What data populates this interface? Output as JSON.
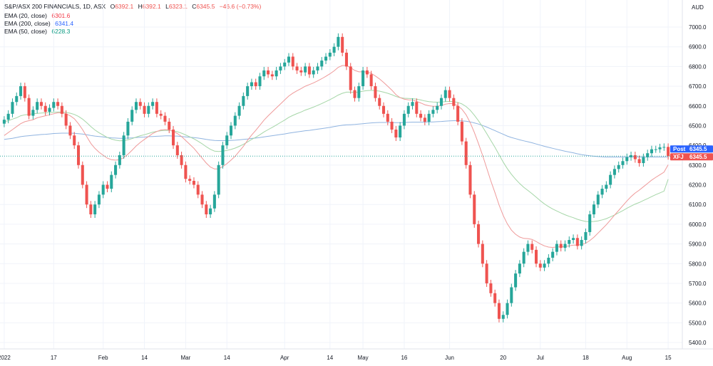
{
  "header": {
    "symbol_line": "S&P/ASX 200 FINANCIALS, 1D, ASX",
    "ohlc": {
      "open_label": "O",
      "open": "6392.1",
      "high_label": "H",
      "high": "6392.1",
      "low_label": "L",
      "low": "6323.1",
      "close_label": "C",
      "close": "6345.5",
      "change": "−46.6 (−0.73%)"
    },
    "indicators": [
      {
        "label": "EMA (20, close)",
        "value": "6301.6",
        "color": "#f23645"
      },
      {
        "label": "EMA (200, close)",
        "value": "6341.4",
        "color": "#2962ff"
      },
      {
        "label": "EMA (50, close)",
        "value": "6228.3",
        "color": "#089981"
      }
    ]
  },
  "colors": {
    "up": "#26a69a",
    "down": "#ef5350",
    "ema20": "#ef9a9a",
    "ema50": "#a5d6a7",
    "ema200": "#90b4e0",
    "last_line": "#26a69a",
    "badge_post": "#2962ff",
    "badge_last": "#ef5350"
  },
  "badges": [
    {
      "label": "Post",
      "value": "6345.5",
      "color": "#2962ff"
    },
    {
      "label": "XFJ",
      "value": "6345.5",
      "color": "#ef5350"
    }
  ],
  "chart_data": {
    "type": "candlestick",
    "currency_label": "AUD",
    "ylim": [
      5400,
      7000
    ],
    "yticks": [
      5400,
      5500,
      5600,
      5700,
      5800,
      5900,
      6000,
      6100,
      6200,
      6300,
      6400,
      6500,
      6600,
      6700,
      6800,
      6900,
      7000
    ],
    "x_labels": [
      {
        "i": 0,
        "label": "2022"
      },
      {
        "i": 12,
        "label": "17"
      },
      {
        "i": 24,
        "label": "Feb"
      },
      {
        "i": 34,
        "label": "14"
      },
      {
        "i": 44,
        "label": "Mar"
      },
      {
        "i": 54,
        "label": "14"
      },
      {
        "i": 68,
        "label": "Apr"
      },
      {
        "i": 79,
        "label": "14"
      },
      {
        "i": 87,
        "label": "May"
      },
      {
        "i": 97,
        "label": "16"
      },
      {
        "i": 108,
        "label": "Jun"
      },
      {
        "i": 121,
        "label": "20"
      },
      {
        "i": 130,
        "label": "Jul"
      },
      {
        "i": 141,
        "label": "18"
      },
      {
        "i": 151,
        "label": "Aug"
      },
      {
        "i": 161,
        "label": "15"
      }
    ],
    "closes": [
      6530,
      6560,
      6620,
      6650,
      6700,
      6640,
      6550,
      6580,
      6620,
      6600,
      6570,
      6590,
      6620,
      6600,
      6560,
      6500,
      6450,
      6400,
      6300,
      6200,
      6100,
      6050,
      6100,
      6150,
      6200,
      6180,
      6250,
      6300,
      6350,
      6450,
      6520,
      6580,
      6620,
      6600,
      6560,
      6600,
      6620,
      6560,
      6550,
      6520,
      6480,
      6400,
      6350,
      6300,
      6230,
      6220,
      6200,
      6150,
      6100,
      6050,
      6080,
      6150,
      6300,
      6400,
      6450,
      6500,
      6550,
      6600,
      6650,
      6700,
      6720,
      6700,
      6750,
      6780,
      6760,
      6750,
      6780,
      6800,
      6820,
      6850,
      6800,
      6780,
      6770,
      6800,
      6760,
      6780,
      6800,
      6830,
      6850,
      6870,
      6900,
      6950,
      6870,
      6800,
      6680,
      6640,
      6700,
      6780,
      6760,
      6700,
      6640,
      6600,
      6560,
      6520,
      6480,
      6440,
      6500,
      6560,
      6600,
      6620,
      6560,
      6540,
      6520,
      6560,
      6580,
      6600,
      6640,
      6680,
      6640,
      6600,
      6520,
      6420,
      6300,
      6150,
      6000,
      5900,
      5800,
      5700,
      5650,
      5600,
      5520,
      5540,
      5600,
      5680,
      5750,
      5800,
      5860,
      5900,
      5870,
      5800,
      5780,
      5800,
      5830,
      5860,
      5900,
      5880,
      5900,
      5920,
      5930,
      5890,
      5920,
      5960,
      6050,
      6100,
      6150,
      6180,
      6200,
      6250,
      6280,
      6300,
      6320,
      6340,
      6350,
      6330,
      6310,
      6340,
      6360,
      6380,
      6380,
      6390,
      6392,
      6345.5
    ],
    "ema20": [
      6450,
      6465,
      6480,
      6495,
      6510,
      6520,
      6525,
      6530,
      6540,
      6545,
      6550,
      6555,
      6560,
      6565,
      6565,
      6560,
      6550,
      6535,
      6510,
      6480,
      6445,
      6410,
      6385,
      6365,
      6350,
      6335,
      6327,
      6325,
      6327,
      6338,
      6355,
      6375,
      6397,
      6415,
      6430,
      6445,
      6460,
      6470,
      6478,
      6480,
      6478,
      6470,
      6460,
      6445,
      6425,
      6405,
      6385,
      6360,
      6335,
      6310,
      6290,
      6280,
      6281,
      6292,
      6307,
      6325,
      6345,
      6370,
      6395,
      6425,
      6452,
      6476,
      6502,
      6528,
      6550,
      6570,
      6590,
      6610,
      6630,
      6650,
      6665,
      6677,
      6688,
      6700,
      6708,
      6717,
      6727,
      6738,
      6750,
      6763,
      6778,
      6796,
      6805,
      6805,
      6794,
      6780,
      6773,
      6773,
      6772,
      6765,
      6752,
      6737,
      6719,
      6700,
      6680,
      6657,
      6642,
      6634,
      6631,
      6630,
      6623,
      6615,
      6606,
      6601,
      6598,
      6598,
      6602,
      6609,
      6612,
      6611,
      6601,
      6583,
      6555,
      6515,
      6465,
      6410,
      6350,
      6285,
      6220,
      6160,
      6097,
      6044,
      6002,
      5970,
      5949,
      5935,
      5928,
      5927,
      5923,
      5912,
      5900,
      5890,
      5884,
      5882,
      5885,
      5885,
      5887,
      5890,
      5894,
      5894,
      5897,
      5903,
      5917,
      5934,
      5955,
      5976,
      5997,
      6021,
      6046,
      6070,
      6094,
      6118,
      6140,
      6158,
      6173,
      6190,
      6207,
      6224,
      6238,
      6251,
      6264,
      6301.6
    ],
    "ema50": [
      6520,
      6525,
      6533,
      6540,
      6550,
      6555,
      6557,
      6560,
      6562,
      6564,
      6565,
      6566,
      6568,
      6569,
      6569,
      6567,
      6563,
      6557,
      6547,
      6533,
      6515,
      6495,
      6478,
      6464,
      6452,
      6440,
      6432,
      6426,
      6423,
      6424,
      6428,
      6434,
      6442,
      6449,
      6454,
      6460,
      6467,
      6471,
      6474,
      6476,
      6476,
      6473,
      6469,
      6462,
      6453,
      6443,
      6433,
      6421,
      6408,
      6393,
      6380,
      6371,
      6369,
      6370,
      6374,
      6379,
      6386,
      6395,
      6405,
      6417,
      6430,
      6441,
      6454,
      6468,
      6480,
      6491,
      6503,
      6516,
      6528,
      6542,
      6552,
      6561,
      6569,
      6579,
      6586,
      6594,
      6603,
      6612,
      6622,
      6632,
      6643,
      6655,
      6664,
      6670,
      6670,
      6669,
      6670,
      6675,
      6678,
      6679,
      6678,
      6675,
      6670,
      6664,
      6657,
      6648,
      6642,
      6639,
      6638,
      6637,
      6634,
      6630,
      6625,
      6622,
      6620,
      6619,
      6620,
      6622,
      6623,
      6622,
      6618,
      6610,
      6597,
      6578,
      6553,
      6525,
      6494,
      6460,
      6425,
      6390,
      6352,
      6315,
      6282,
      6253,
      6228,
      6206,
      6187,
      6171,
      6155,
      6137,
      6119,
      6103,
      6089,
      6077,
      6067,
      6057,
      6048,
      6040,
      6033,
      6025,
      6019,
      6014,
      6013,
      6014,
      6017,
      6022,
      6028,
      6037,
      6047,
      6058,
      6069,
      6081,
      6092,
      6102,
      6110,
      6120,
      6130,
      6140,
      6150,
      6159,
      6168,
      6228.3
    ],
    "ema200": [
      6430,
      6433,
      6436,
      6440,
      6444,
      6447,
      6449,
      6451,
      6453,
      6455,
      6456,
      6458,
      6460,
      6461,
      6462,
      6462,
      6462,
      6461,
      6459,
      6457,
      6454,
      6450,
      6447,
      6445,
      6443,
      6440,
      6438,
      6437,
      6436,
      6436,
      6437,
      6438,
      6440,
      6441,
      6442,
      6444,
      6445,
      6446,
      6447,
      6448,
      6448,
      6447,
      6447,
      6445,
      6443,
      6441,
      6439,
      6437,
      6434,
      6430,
      6427,
      6425,
      6424,
      6424,
      6424,
      6425,
      6426,
      6428,
      6430,
      6432,
      6435,
      6437,
      6440,
      6443,
      6446,
      6449,
      6452,
      6455,
      6458,
      6462,
      6465,
      6468,
      6471,
      6474,
      6476,
      6479,
      6482,
      6485,
      6488,
      6491,
      6495,
      6499,
      6502,
      6504,
      6505,
      6506,
      6508,
      6510,
      6512,
      6514,
      6515,
      6516,
      6516,
      6516,
      6516,
      6515,
      6515,
      6516,
      6517,
      6518,
      6518,
      6518,
      6518,
      6519,
      6519,
      6520,
      6521,
      6523,
      6524,
      6525,
      6525,
      6524,
      6522,
      6519,
      6514,
      6508,
      6501,
      6493,
      6484,
      6475,
      6465,
      6456,
      6447,
      6440,
      6434,
      6428,
      6423,
      6418,
      6413,
      6407,
      6401,
      6395,
      6390,
      6385,
      6380,
      6375,
      6370,
      6366,
      6362,
      6357,
      6353,
      6350,
      6347,
      6345,
      6343,
      6342,
      6341,
      6341,
      6341,
      6341,
      6341,
      6341,
      6341,
      6341,
      6341,
      6341,
      6341,
      6341,
      6341,
      6341,
      6341,
      6341.4
    ]
  }
}
